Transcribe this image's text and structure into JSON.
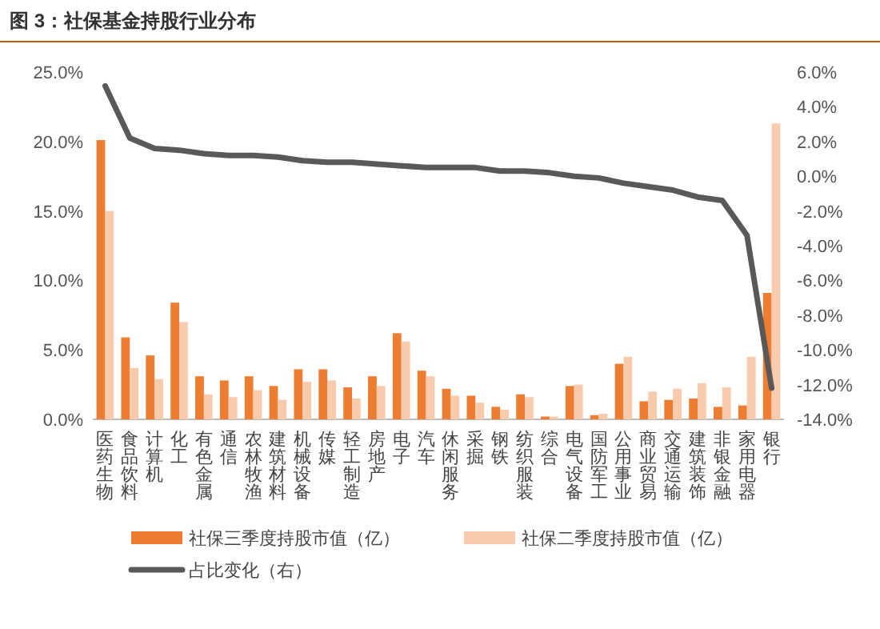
{
  "chart_data": {
    "type": "bar",
    "title": "图 3：社保基金持股行业分布",
    "categories": [
      "医药生物",
      "食品饮料",
      "计算机",
      "化工",
      "有色金属",
      "通信",
      "农林牧渔",
      "建筑材料",
      "机械设备",
      "传媒",
      "轻工制造",
      "房地产",
      "电子",
      "汽车",
      "休闲服务",
      "采掘",
      "钢铁",
      "纺织服装",
      "综合",
      "电气设备",
      "国防军工",
      "公用事业",
      "商业贸易",
      "交通运输",
      "建筑装饰",
      "非银金融",
      "家用电器",
      "银行"
    ],
    "series": [
      {
        "name": "社保三季度持股市值（亿）",
        "color": "#ed7d31",
        "values": [
          20.1,
          5.9,
          4.6,
          8.4,
          3.1,
          2.8,
          3.1,
          2.4,
          3.6,
          3.6,
          2.3,
          3.1,
          6.2,
          3.5,
          2.2,
          1.7,
          0.9,
          1.8,
          0.2,
          2.4,
          0.3,
          4.0,
          1.3,
          1.4,
          1.5,
          0.9,
          1.0,
          9.1
        ]
      },
      {
        "name": "社保二季度持股市值（亿）",
        "color": "#f8cbad",
        "values": [
          15.0,
          3.7,
          2.9,
          7.0,
          1.8,
          1.6,
          2.1,
          1.4,
          2.7,
          2.8,
          1.5,
          2.4,
          5.6,
          3.1,
          1.7,
          1.2,
          0.7,
          1.6,
          0.2,
          2.5,
          0.4,
          4.5,
          2.0,
          2.2,
          2.6,
          2.3,
          4.5,
          21.3
        ]
      },
      {
        "name": "占比变化（右）",
        "type": "line",
        "axis": "y2",
        "color": "#595959",
        "values": [
          5.2,
          2.2,
          1.6,
          1.5,
          1.3,
          1.2,
          1.2,
          1.1,
          0.9,
          0.8,
          0.8,
          0.7,
          0.6,
          0.5,
          0.5,
          0.5,
          0.3,
          0.3,
          0.2,
          0.0,
          -0.1,
          -0.4,
          -0.6,
          -0.8,
          -1.2,
          -1.4,
          -3.4,
          -12.2
        ]
      }
    ],
    "ylim": [
      0,
      25
    ],
    "yticks": [
      {
        "value": 0,
        "label": "0.0%"
      },
      {
        "value": 5,
        "label": "5.0%"
      },
      {
        "value": 10,
        "label": "10.0%"
      },
      {
        "value": 15,
        "label": "15.0%"
      },
      {
        "value": 20,
        "label": "20.0%"
      },
      {
        "value": 25,
        "label": "25.0%"
      }
    ],
    "y2lim": [
      -14,
      6
    ],
    "y2ticks": [
      {
        "value": -14,
        "label": "-14.0%"
      },
      {
        "value": -12,
        "label": "-12.0%"
      },
      {
        "value": -10,
        "label": "-10.0%"
      },
      {
        "value": -8,
        "label": "-8.0%"
      },
      {
        "value": -6,
        "label": "-6.0%"
      },
      {
        "value": -4,
        "label": "-4.0%"
      },
      {
        "value": -2,
        "label": "-2.0%"
      },
      {
        "value": 0,
        "label": "0.0%"
      },
      {
        "value": 2,
        "label": "2.0%"
      },
      {
        "value": 4,
        "label": "4.0%"
      },
      {
        "value": 6,
        "label": "6.0%"
      }
    ],
    "legend": "bottom"
  }
}
